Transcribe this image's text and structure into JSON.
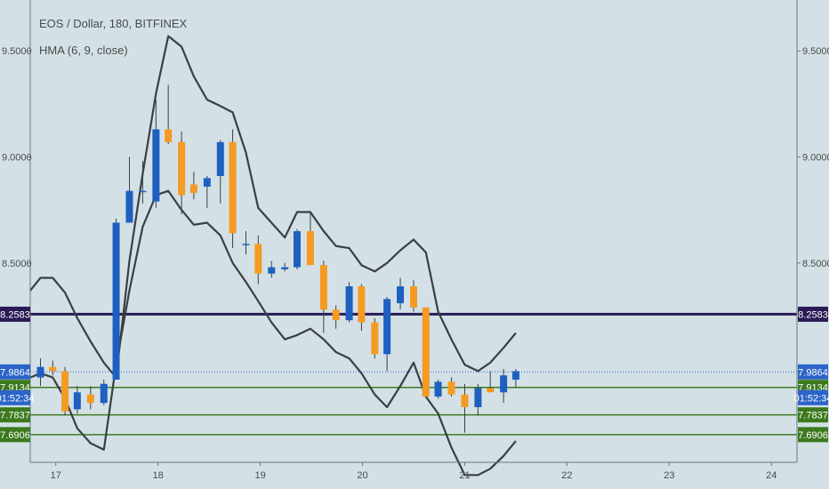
{
  "header": {
    "symbol_line": "EOS / Dollar, 180, BITFINEX",
    "indicator_line": "HMA (6, 9, close)"
  },
  "colors": {
    "background": "#d3e1e6",
    "up_candle": "#1e5fc2",
    "down_candle": "#f59a23",
    "band_line": "#3a3f42",
    "resistance_line": "#2a1a55",
    "support_line": "#3d7a1f",
    "price_line": "#2c64c8",
    "axis_border": "#6b7780"
  },
  "chart_data": {
    "type": "candlestick",
    "title": "EOS / Dollar, 180, BITFINEX",
    "indicator": "HMA (6, 9, close)",
    "xlim": [
      16.75,
      24.25
    ],
    "ylim": [
      7.56,
      9.74
    ],
    "grid": false,
    "x_ticks": [
      {
        "x": 17,
        "label": "17"
      },
      {
        "x": 18,
        "label": "18"
      },
      {
        "x": 19,
        "label": "19"
      },
      {
        "x": 20,
        "label": "20"
      },
      {
        "x": 21,
        "label": "21"
      },
      {
        "x": 22,
        "label": "22"
      },
      {
        "x": 23,
        "label": "23"
      },
      {
        "x": 24,
        "label": "24"
      }
    ],
    "y_ticks": [
      {
        "y": 9.5,
        "label": "9.5000"
      },
      {
        "y": 9.0,
        "label": "9.0000"
      },
      {
        "y": 8.5,
        "label": "8.5000"
      }
    ],
    "candles": [
      {
        "t": 16.85,
        "o": 7.96,
        "h": 8.05,
        "l": 7.92,
        "c": 8.01
      },
      {
        "t": 16.97,
        "o": 8.01,
        "h": 8.04,
        "l": 7.97,
        "c": 7.99
      },
      {
        "t": 17.09,
        "o": 7.99,
        "h": 8.01,
        "l": 7.78,
        "c": 7.8
      },
      {
        "t": 17.21,
        "o": 7.81,
        "h": 7.92,
        "l": 7.79,
        "c": 7.89
      },
      {
        "t": 17.34,
        "o": 7.88,
        "h": 7.92,
        "l": 7.81,
        "c": 7.84
      },
      {
        "t": 17.47,
        "o": 7.84,
        "h": 7.95,
        "l": 7.83,
        "c": 7.93
      },
      {
        "t": 17.59,
        "o": 7.95,
        "h": 8.71,
        "l": 7.95,
        "c": 8.69
      },
      {
        "t": 17.72,
        "o": 8.69,
        "h": 9.0,
        "l": 8.69,
        "c": 8.84
      },
      {
        "t": 17.85,
        "o": 8.84,
        "h": 8.98,
        "l": 8.78,
        "c": 8.84
      },
      {
        "t": 17.98,
        "o": 8.79,
        "h": 9.27,
        "l": 8.76,
        "c": 9.13
      },
      {
        "t": 18.1,
        "o": 9.13,
        "h": 9.34,
        "l": 9.06,
        "c": 9.07
      },
      {
        "t": 18.23,
        "o": 9.07,
        "h": 9.12,
        "l": 8.73,
        "c": 8.82
      },
      {
        "t": 18.35,
        "o": 8.87,
        "h": 8.93,
        "l": 8.8,
        "c": 8.83
      },
      {
        "t": 18.48,
        "o": 8.86,
        "h": 8.91,
        "l": 8.76,
        "c": 8.9
      },
      {
        "t": 18.61,
        "o": 8.91,
        "h": 9.08,
        "l": 8.78,
        "c": 9.07
      },
      {
        "t": 18.73,
        "o": 9.07,
        "h": 9.13,
        "l": 8.57,
        "c": 8.64
      },
      {
        "t": 18.86,
        "o": 8.59,
        "h": 8.65,
        "l": 8.54,
        "c": 8.59
      },
      {
        "t": 18.98,
        "o": 8.59,
        "h": 8.63,
        "l": 8.4,
        "c": 8.45
      },
      {
        "t": 19.11,
        "o": 8.45,
        "h": 8.51,
        "l": 8.43,
        "c": 8.48
      },
      {
        "t": 19.24,
        "o": 8.47,
        "h": 8.5,
        "l": 8.46,
        "c": 8.48
      },
      {
        "t": 19.36,
        "o": 8.48,
        "h": 8.66,
        "l": 8.47,
        "c": 8.65
      },
      {
        "t": 19.49,
        "o": 8.65,
        "h": 8.74,
        "l": 8.49,
        "c": 8.49
      },
      {
        "t": 19.62,
        "o": 8.49,
        "h": 8.51,
        "l": 8.17,
        "c": 8.28
      },
      {
        "t": 19.74,
        "o": 8.28,
        "h": 8.3,
        "l": 8.19,
        "c": 8.23
      },
      {
        "t": 19.87,
        "o": 8.23,
        "h": 8.41,
        "l": 8.22,
        "c": 8.39
      },
      {
        "t": 19.99,
        "o": 8.39,
        "h": 8.4,
        "l": 8.18,
        "c": 8.22
      },
      {
        "t": 20.12,
        "o": 8.22,
        "h": 8.24,
        "l": 8.05,
        "c": 8.07
      },
      {
        "t": 20.24,
        "o": 8.07,
        "h": 8.34,
        "l": 7.99,
        "c": 8.33
      },
      {
        "t": 20.37,
        "o": 8.31,
        "h": 8.43,
        "l": 8.28,
        "c": 8.39
      },
      {
        "t": 20.5,
        "o": 8.39,
        "h": 8.42,
        "l": 8.27,
        "c": 8.29
      },
      {
        "t": 20.62,
        "o": 8.29,
        "h": 8.29,
        "l": 7.87,
        "c": 7.87
      },
      {
        "t": 20.74,
        "o": 7.87,
        "h": 7.95,
        "l": 7.86,
        "c": 7.94
      },
      {
        "t": 20.87,
        "o": 7.94,
        "h": 7.96,
        "l": 7.87,
        "c": 7.88
      },
      {
        "t": 21.0,
        "o": 7.88,
        "h": 7.93,
        "l": 7.7,
        "c": 7.82
      },
      {
        "t": 21.13,
        "o": 7.82,
        "h": 7.93,
        "l": 7.78,
        "c": 7.91
      },
      {
        "t": 21.25,
        "o": 7.91,
        "h": 7.99,
        "l": 7.89,
        "c": 7.89
      },
      {
        "t": 21.38,
        "o": 7.89,
        "h": 8.0,
        "l": 7.84,
        "c": 7.97
      },
      {
        "t": 21.5,
        "o": 7.95,
        "h": 8.0,
        "l": 7.91,
        "c": 7.99
      }
    ],
    "series": [
      {
        "name": "upper-band",
        "points": [
          [
            16.75,
            8.37
          ],
          [
            16.85,
            8.43
          ],
          [
            16.97,
            8.43
          ],
          [
            17.09,
            8.36
          ],
          [
            17.21,
            8.24
          ],
          [
            17.34,
            8.13
          ],
          [
            17.47,
            8.03
          ],
          [
            17.59,
            7.96
          ],
          [
            17.72,
            8.51
          ],
          [
            17.85,
            8.92
          ],
          [
            17.98,
            9.3
          ],
          [
            18.1,
            9.57
          ],
          [
            18.23,
            9.52
          ],
          [
            18.35,
            9.38
          ],
          [
            18.48,
            9.27
          ],
          [
            18.61,
            9.24
          ],
          [
            18.73,
            9.21
          ],
          [
            18.86,
            9.02
          ],
          [
            18.98,
            8.76
          ],
          [
            19.11,
            8.69
          ],
          [
            19.24,
            8.62
          ],
          [
            19.36,
            8.74
          ],
          [
            19.49,
            8.74
          ],
          [
            19.62,
            8.65
          ],
          [
            19.74,
            8.58
          ],
          [
            19.87,
            8.57
          ],
          [
            19.99,
            8.49
          ],
          [
            20.12,
            8.46
          ],
          [
            20.24,
            8.5
          ],
          [
            20.37,
            8.56
          ],
          [
            20.5,
            8.61
          ],
          [
            20.62,
            8.55
          ],
          [
            20.74,
            8.27
          ],
          [
            20.87,
            8.14
          ],
          [
            21.0,
            8.02
          ],
          [
            21.13,
            7.99
          ],
          [
            21.25,
            8.03
          ],
          [
            21.38,
            8.1
          ],
          [
            21.5,
            8.17
          ]
        ]
      },
      {
        "name": "lower-band",
        "points": [
          [
            16.75,
            7.96
          ],
          [
            16.85,
            7.98
          ],
          [
            16.97,
            7.96
          ],
          [
            17.09,
            7.86
          ],
          [
            17.21,
            7.72
          ],
          [
            17.34,
            7.65
          ],
          [
            17.47,
            7.62
          ],
          [
            17.59,
            8.02
          ],
          [
            17.72,
            8.37
          ],
          [
            17.85,
            8.67
          ],
          [
            17.98,
            8.82
          ],
          [
            18.1,
            8.84
          ],
          [
            18.23,
            8.75
          ],
          [
            18.35,
            8.68
          ],
          [
            18.48,
            8.69
          ],
          [
            18.61,
            8.63
          ],
          [
            18.73,
            8.5
          ],
          [
            18.86,
            8.41
          ],
          [
            18.98,
            8.32
          ],
          [
            19.11,
            8.22
          ],
          [
            19.24,
            8.14
          ],
          [
            19.36,
            8.16
          ],
          [
            19.49,
            8.19
          ],
          [
            19.62,
            8.14
          ],
          [
            19.74,
            8.08
          ],
          [
            19.87,
            8.05
          ],
          [
            19.99,
            7.98
          ],
          [
            20.12,
            7.88
          ],
          [
            20.24,
            7.82
          ],
          [
            20.37,
            7.92
          ],
          [
            20.5,
            8.03
          ],
          [
            20.62,
            7.87
          ],
          [
            20.74,
            7.79
          ],
          [
            20.87,
            7.63
          ],
          [
            21.0,
            7.5
          ],
          [
            21.13,
            7.5
          ],
          [
            21.25,
            7.53
          ],
          [
            21.38,
            7.59
          ],
          [
            21.5,
            7.66
          ]
        ]
      }
    ],
    "horizontal_lines": [
      {
        "kind": "resistance",
        "y": 8.2583,
        "label": "8.2583"
      },
      {
        "kind": "support",
        "y": 7.9134,
        "label": "7.9134"
      },
      {
        "kind": "support",
        "y": 7.7837,
        "label": "7.7837"
      },
      {
        "kind": "support",
        "y": 7.6906,
        "label": "7.6906"
      },
      {
        "kind": "current-price",
        "y": 7.9864,
        "label": "7.9864"
      }
    ],
    "countdown_label": "01:52:34"
  }
}
